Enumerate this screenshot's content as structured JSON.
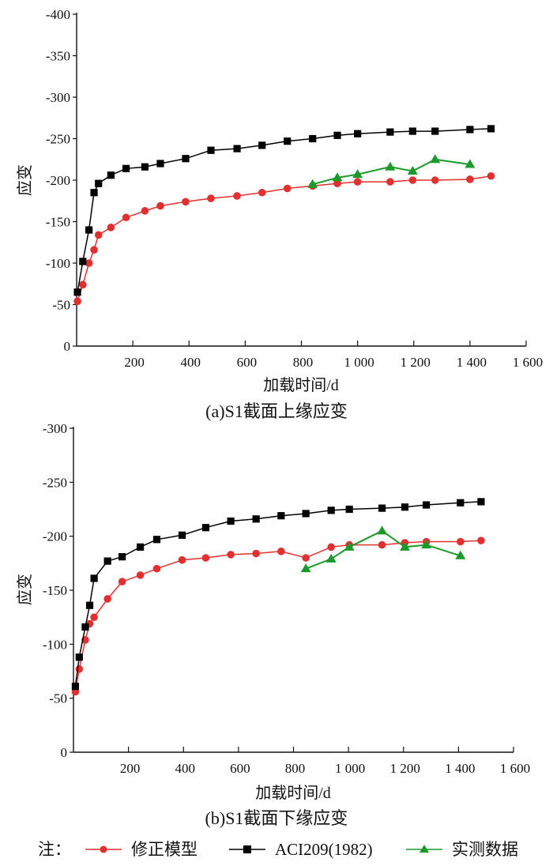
{
  "chart_data": [
    {
      "type": "line",
      "title": "(a)S1截面上缘应变",
      "xlabel": "加载时间/d",
      "ylabel": "应变",
      "xlim": [
        0,
        1600
      ],
      "ylim": [
        0,
        -400
      ],
      "grid": false,
      "xticks": [
        200,
        400,
        600,
        800,
        1000,
        1200,
        1400,
        1600
      ],
      "xtick_labels": [
        "200",
        "400",
        "600",
        "800",
        "1 000",
        "1 200",
        "1 400",
        "1 600"
      ],
      "yticks": [
        0,
        -50,
        -100,
        -150,
        -200,
        -250,
        -300,
        -350,
        -400
      ],
      "ytick_labels": [
        "0",
        "-50",
        "-100",
        "-150",
        "-200",
        "-250",
        "-300",
        "-350",
        "-400"
      ],
      "series": [
        {
          "name": "修正模型",
          "color": "#e03030",
          "marker": "circle",
          "x": [
            3,
            22,
            44,
            62,
            78,
            122,
            176,
            243,
            298,
            388,
            478,
            571,
            660,
            750,
            840,
            928,
            1000,
            1116,
            1196,
            1276,
            1400,
            1475
          ],
          "y": [
            -54,
            -74,
            -100,
            -116,
            -134,
            -143,
            -155,
            -163,
            -169,
            -174,
            -178,
            -181,
            -185,
            -190,
            -193,
            -196,
            -198,
            -198,
            -200,
            -200,
            -201,
            -205
          ]
        },
        {
          "name": "ACI209(1982)",
          "color": "#000000",
          "marker": "square",
          "x": [
            3,
            22,
            44,
            62,
            78,
            122,
            176,
            243,
            298,
            388,
            478,
            571,
            660,
            750,
            840,
            928,
            1000,
            1116,
            1196,
            1276,
            1400,
            1475
          ],
          "y": [
            -65,
            -102,
            -140,
            -185,
            -196,
            -206,
            -214,
            -216,
            -220,
            -226,
            -236,
            -238,
            -242,
            -247,
            -250,
            -254,
            -256,
            -258,
            -259,
            -259,
            -261,
            -262
          ]
        },
        {
          "name": "实测数据",
          "color": "#1a9a2a",
          "marker": "triangle",
          "x": [
            840,
            928,
            1000,
            1116,
            1196,
            1276,
            1400
          ],
          "y": [
            -195,
            -203,
            -207,
            -216,
            -211,
            -225,
            -219
          ]
        }
      ]
    },
    {
      "type": "line",
      "title": "(b)S1截面下缘应变",
      "xlabel": "加载时间/d",
      "ylabel": "应变",
      "xlim": [
        0,
        1600
      ],
      "ylim": [
        0,
        -300
      ],
      "grid": false,
      "xticks": [
        200,
        400,
        600,
        800,
        1000,
        1200,
        1400,
        1600
      ],
      "xtick_labels": [
        "200",
        "400",
        "600",
        "800",
        "1 000",
        "1 200",
        "1 400",
        "1 600"
      ],
      "yticks": [
        0,
        -50,
        -100,
        -150,
        -200,
        -250,
        -300
      ],
      "ytick_labels": [
        "0",
        "-50",
        "-100",
        "-150",
        "-200",
        "-250",
        "-300"
      ],
      "series": [
        {
          "name": "修正模型",
          "color": "#e03030",
          "marker": "circle",
          "x": [
            7,
            21,
            43,
            59,
            75,
            124,
            177,
            243,
            303,
            395,
            481,
            572,
            664,
            755,
            845,
            937,
            1003,
            1122,
            1205,
            1283,
            1407,
            1482
          ],
          "y": [
            -56,
            -77,
            -104,
            -119,
            -125,
            -142,
            -158,
            -164,
            -170,
            -178,
            -180,
            -183,
            -184,
            -186,
            -180,
            -190,
            -192,
            -192,
            -194,
            -195,
            -195,
            -196
          ]
        },
        {
          "name": "ACI209(1982)",
          "color": "#000000",
          "marker": "square",
          "x": [
            7,
            21,
            43,
            59,
            75,
            124,
            177,
            243,
            303,
            395,
            481,
            572,
            664,
            755,
            845,
            937,
            1003,
            1122,
            1205,
            1283,
            1407,
            1482
          ],
          "y": [
            -61,
            -88,
            -116,
            -136,
            -161,
            -177,
            -181,
            -190,
            -197,
            -201,
            -208,
            -214,
            -216,
            -219,
            -221,
            -224,
            -225,
            -226,
            -227,
            -229,
            -231,
            -232
          ]
        },
        {
          "name": "实测数据",
          "color": "#1a9a2a",
          "marker": "triangle",
          "x": [
            845,
            937,
            1003,
            1122,
            1205,
            1283,
            1407
          ],
          "y": [
            -170,
            -179,
            -190,
            -205,
            -190,
            -192,
            -182
          ]
        }
      ]
    }
  ],
  "legend": {
    "prefix": "注：",
    "items": [
      "修正模型",
      "ACI209(1982)",
      "实测数据"
    ],
    "placement": "bottom"
  }
}
